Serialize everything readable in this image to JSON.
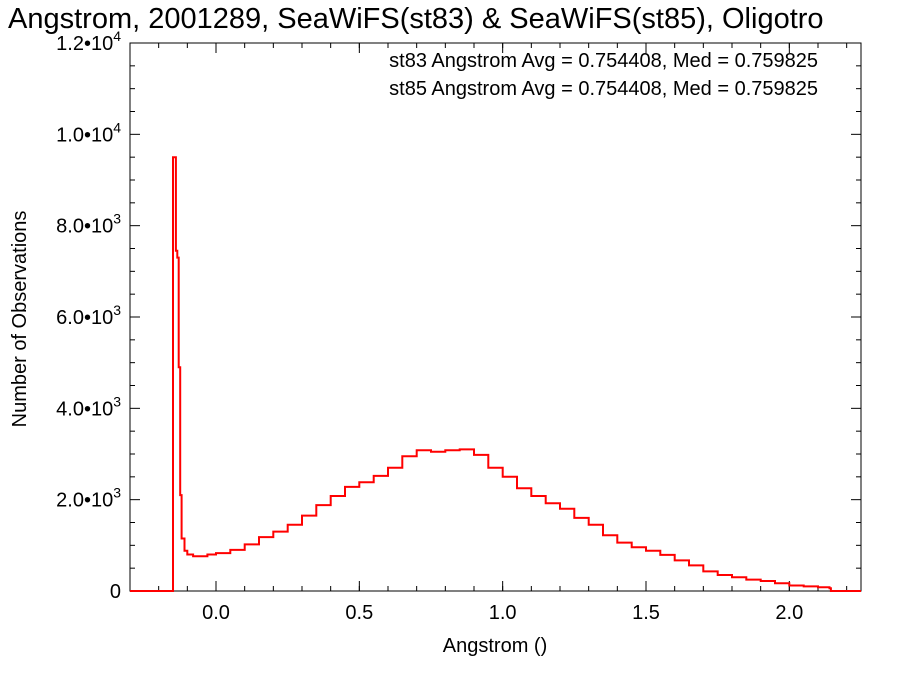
{
  "chart_data": {
    "type": "line",
    "title": "Angstrom, 2001289, SeaWiFS(st83) & SeaWiFS(st85), Oligotro",
    "xlabel": "Angstrom ()",
    "ylabel": "Number of Observations",
    "xlim": [
      -0.3,
      2.25
    ],
    "ylim": [
      0,
      12000
    ],
    "x_ticks": [
      {
        "value": 0.0,
        "label": "0.0"
      },
      {
        "value": 0.5,
        "label": "0.5"
      },
      {
        "value": 1.0,
        "label": "1.0"
      },
      {
        "value": 1.5,
        "label": "1.5"
      },
      {
        "value": 2.0,
        "label": "2.0"
      }
    ],
    "y_ticks": [
      {
        "value": 0,
        "mant": "0",
        "exp": ""
      },
      {
        "value": 2000,
        "mant": "2.0•10",
        "exp": "3"
      },
      {
        "value": 4000,
        "mant": "4.0•10",
        "exp": "3"
      },
      {
        "value": 6000,
        "mant": "6.0•10",
        "exp": "3"
      },
      {
        "value": 8000,
        "mant": "8.0•10",
        "exp": "3"
      },
      {
        "value": 10000,
        "mant": "1.0•10",
        "exp": "4"
      },
      {
        "value": 12000,
        "mant": "1.2•10",
        "exp": "4"
      }
    ],
    "grid": false,
    "annotations": [
      {
        "text": "st83 Angstrom Avg = 0.754408, Med = 0.759825",
        "color": "#000000"
      },
      {
        "text": "st85 Angstrom Avg = 0.754408, Med = 0.759825",
        "color": "#ff0000"
      }
    ],
    "series": [
      {
        "color": "#ff0000",
        "values": [
          [
            -0.3,
            0
          ],
          [
            -0.16,
            0
          ],
          [
            -0.15,
            9500
          ],
          [
            -0.14,
            7450
          ],
          [
            -0.135,
            7300
          ],
          [
            -0.13,
            4900
          ],
          [
            -0.125,
            2100
          ],
          [
            -0.12,
            1150
          ],
          [
            -0.11,
            880
          ],
          [
            -0.1,
            800
          ],
          [
            -0.08,
            760
          ],
          [
            -0.05,
            760
          ],
          [
            -0.03,
            800
          ],
          [
            0.0,
            830
          ],
          [
            0.05,
            900
          ],
          [
            0.1,
            1020
          ],
          [
            0.15,
            1180
          ],
          [
            0.2,
            1300
          ],
          [
            0.25,
            1450
          ],
          [
            0.3,
            1650
          ],
          [
            0.35,
            1880
          ],
          [
            0.4,
            2080
          ],
          [
            0.45,
            2280
          ],
          [
            0.5,
            2380
          ],
          [
            0.55,
            2520
          ],
          [
            0.6,
            2700
          ],
          [
            0.65,
            2950
          ],
          [
            0.7,
            3080
          ],
          [
            0.75,
            3050
          ],
          [
            0.8,
            3080
          ],
          [
            0.85,
            3100
          ],
          [
            0.9,
            2980
          ],
          [
            0.95,
            2700
          ],
          [
            1.0,
            2500
          ],
          [
            1.05,
            2250
          ],
          [
            1.1,
            2080
          ],
          [
            1.15,
            1920
          ],
          [
            1.2,
            1800
          ],
          [
            1.25,
            1600
          ],
          [
            1.3,
            1450
          ],
          [
            1.35,
            1220
          ],
          [
            1.4,
            1060
          ],
          [
            1.45,
            960
          ],
          [
            1.5,
            880
          ],
          [
            1.55,
            790
          ],
          [
            1.6,
            670
          ],
          [
            1.65,
            560
          ],
          [
            1.7,
            430
          ],
          [
            1.75,
            350
          ],
          [
            1.8,
            300
          ],
          [
            1.85,
            250
          ],
          [
            1.9,
            220
          ],
          [
            1.95,
            170
          ],
          [
            2.0,
            120
          ],
          [
            2.05,
            100
          ],
          [
            2.1,
            80
          ],
          [
            2.14,
            60
          ],
          [
            2.145,
            0
          ],
          [
            2.25,
            0
          ]
        ]
      }
    ]
  }
}
